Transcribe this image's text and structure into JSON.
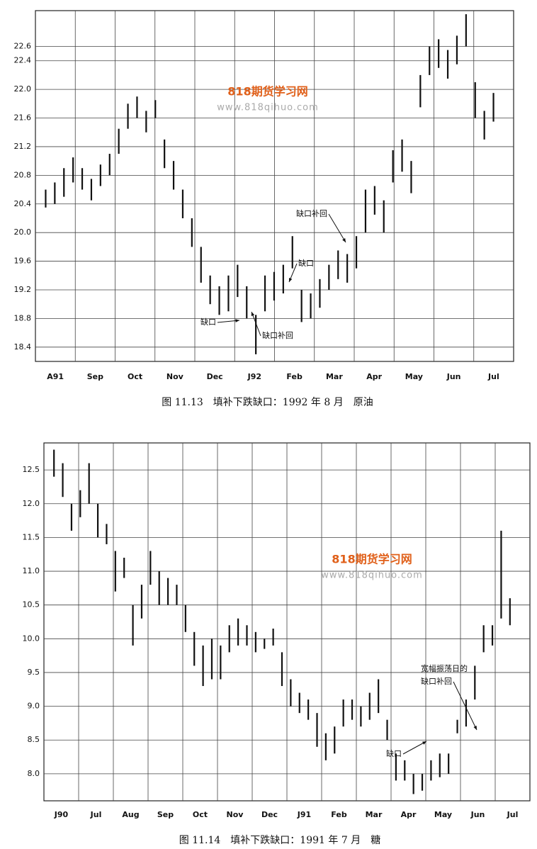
{
  "chart_data": [
    {
      "type": "hilo",
      "caption": "图 11.13　填补下跌缺口：1992 年 8 月　原油",
      "categories": [
        "A91",
        "Sep",
        "Oct",
        "Nov",
        "Dec",
        "J92",
        "Feb",
        "Mar",
        "Apr",
        "May",
        "Jun",
        "Jul"
      ],
      "high": [
        20.6,
        20.7,
        20.9,
        21.05,
        20.9,
        20.75,
        20.95,
        21.1,
        21.45,
        21.8,
        21.9,
        21.7,
        21.85,
        21.3,
        21.0,
        20.6,
        20.2,
        19.8,
        19.4,
        19.25,
        19.4,
        19.55,
        19.25,
        18.85,
        19.4,
        19.45,
        19.55,
        19.95,
        19.2,
        19.15,
        19.35,
        19.55,
        19.75,
        19.7,
        19.95,
        20.6,
        20.65,
        20.45,
        21.15,
        21.3,
        21.0,
        22.2,
        22.6,
        22.7,
        22.55,
        22.75,
        23.05,
        22.1,
        21.7,
        21.95
      ],
      "low": [
        20.35,
        20.4,
        20.5,
        20.7,
        20.6,
        20.45,
        20.65,
        20.8,
        21.1,
        21.45,
        21.6,
        21.4,
        21.6,
        20.9,
        20.6,
        20.2,
        19.8,
        19.3,
        19.0,
        18.85,
        18.9,
        19.1,
        18.8,
        18.3,
        18.9,
        19.05,
        19.15,
        19.5,
        18.75,
        18.8,
        18.95,
        19.2,
        19.35,
        19.3,
        19.5,
        20.0,
        20.25,
        20.0,
        20.7,
        20.85,
        20.55,
        21.75,
        22.2,
        22.3,
        22.15,
        22.35,
        22.6,
        21.6,
        21.3,
        21.55
      ],
      "ylim": [
        18.2,
        23.1
      ],
      "yticks": [
        18.4,
        18.8,
        19.2,
        19.6,
        {
          "value": 20,
          "label": "20.0"
        },
        20.4,
        20.8,
        21.2,
        21.6,
        {
          "value": 22,
          "label": "22.0"
        },
        22.4,
        22.6
      ],
      "color": "#111111",
      "grid": true,
      "annotations": [
        "缺口补回",
        "缺口",
        "缺口",
        "缺口补回"
      ],
      "watermark_title": "818期货学习网",
      "watermark_url": "www.818qihuo.com"
    },
    {
      "type": "hilo",
      "caption": "图 11.14　填补下跌缺口：1991 年 7 月　糖",
      "categories": [
        "J90",
        "Jul",
        "Aug",
        "Sep",
        "Oct",
        "Nov",
        "Dec",
        "J91",
        "Feb",
        "Mar",
        "Apr",
        "May",
        "Jun",
        "Jul"
      ],
      "high": [
        12.8,
        12.6,
        12.0,
        12.2,
        12.6,
        12.0,
        11.7,
        11.3,
        11.2,
        10.5,
        10.8,
        11.3,
        11.0,
        10.9,
        10.8,
        10.5,
        10.1,
        9.9,
        10.0,
        9.9,
        10.2,
        10.3,
        10.2,
        10.1,
        10.0,
        10.15,
        9.8,
        9.4,
        9.2,
        9.1,
        8.9,
        8.6,
        8.7,
        9.1,
        9.1,
        9.0,
        9.2,
        9.4,
        8.8,
        8.3,
        8.2,
        8.0,
        8.0,
        8.2,
        8.3,
        8.3,
        8.8,
        9.1,
        9.6,
        10.2,
        10.2,
        11.6,
        10.6
      ],
      "low": [
        12.4,
        12.1,
        11.6,
        11.8,
        12.0,
        11.5,
        11.4,
        10.7,
        10.9,
        9.9,
        10.3,
        10.8,
        10.5,
        10.5,
        10.5,
        10.1,
        9.6,
        9.3,
        9.4,
        9.4,
        9.8,
        9.9,
        9.9,
        9.8,
        9.85,
        9.9,
        9.3,
        9.0,
        8.9,
        8.8,
        8.4,
        8.2,
        8.3,
        8.7,
        8.8,
        8.7,
        8.8,
        8.9,
        8.5,
        7.9,
        7.9,
        7.7,
        7.75,
        7.9,
        7.95,
        8.0,
        8.6,
        8.7,
        9.1,
        9.8,
        9.9,
        10.3,
        10.2
      ],
      "ylim": [
        7.6,
        12.9
      ],
      "yticks": [
        {
          "value": 8,
          "label": "8.0"
        },
        8.5,
        {
          "value": 9,
          "label": "9.0"
        },
        9.5,
        {
          "value": 10,
          "label": "10.0"
        },
        10.5,
        {
          "value": 11,
          "label": "11.0"
        },
        11.5,
        {
          "value": 12,
          "label": "12.0"
        },
        12.5
      ],
      "color": "#111111",
      "grid": true,
      "annotations": [
        "宽幅振荡日的",
        "缺口补回",
        "缺口"
      ],
      "watermark_title": "818期货学习网",
      "watermark_url": "www.818qihuo.com"
    }
  ]
}
